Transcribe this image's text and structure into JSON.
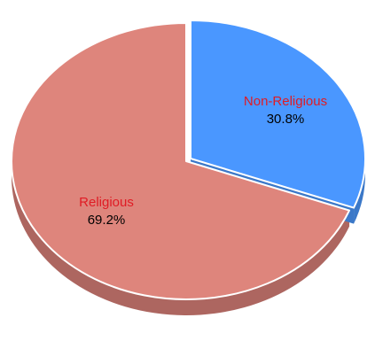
{
  "chart_data": {
    "type": "pie",
    "categories": [
      "Non-Religious",
      "Religious"
    ],
    "values": [
      30.8,
      69.2
    ],
    "value_labels": [
      "30.8%",
      "69.2%"
    ],
    "colors": [
      "#4a97ff",
      "#de857c"
    ],
    "side_colors": [
      "#3b78c8",
      "#ad6660"
    ],
    "label_color": "#e01b24",
    "value_color": "#000000",
    "exploded_slice": "Non-Religious",
    "legend": "none"
  }
}
